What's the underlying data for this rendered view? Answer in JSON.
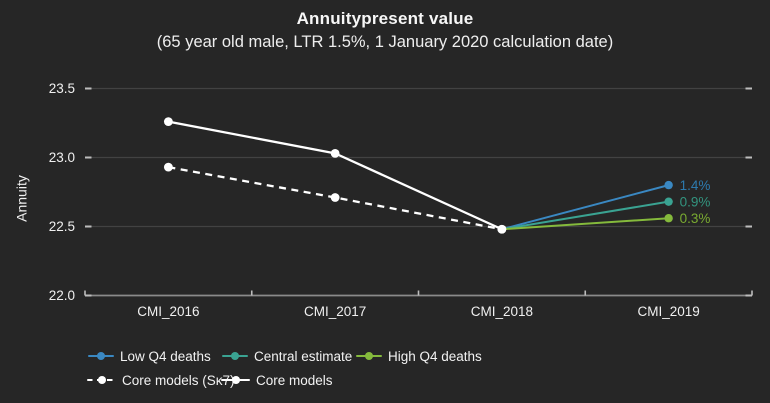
{
  "colors": {
    "background": "#262626",
    "text": "#f2f2f2",
    "gridline": "#424242",
    "axis_line": "#8a8a8a",
    "tick_mark": "#bdbdbd",
    "white_series": "#ffffff",
    "blue": "#3a88c2",
    "teal": "#3aa392",
    "green": "#85ba3c"
  },
  "chart_data": {
    "type": "line",
    "title": "Annuitypresent value",
    "subtitle": "(65 year old male, LTR 1.5%, 1 January 2020 calculation date)",
    "ylabel": "Annuity",
    "xlabel": "",
    "grid": true,
    "legend_position": "bottom",
    "categories": [
      "CMI_2016",
      "CMI_2017",
      "CMI_2018",
      "CMI_2019"
    ],
    "yticks": [
      23.5,
      23.0,
      22.5,
      22.0
    ],
    "ytick_labels": [
      "23.5",
      "23.0",
      "22.5",
      "22.0"
    ],
    "ylim": [
      22.0,
      23.5
    ],
    "series": [
      {
        "name": "Low Q4 deaths",
        "color": "#3a88c2",
        "label_color": "#2d7aae",
        "line_style": "solid",
        "marker": "end-dot",
        "values": [
          null,
          null,
          22.48,
          22.8
        ],
        "end_label": "1.4%"
      },
      {
        "name": "Central estimate",
        "color": "#3aa392",
        "label_color": "#33947f",
        "line_style": "solid",
        "marker": "end-dot",
        "values": [
          null,
          null,
          22.48,
          22.68
        ],
        "end_label": "0.9%"
      },
      {
        "name": "High Q4 deaths",
        "color": "#85ba3c",
        "label_color": "#7aab31",
        "line_style": "solid",
        "marker": "end-dot",
        "values": [
          null,
          null,
          22.48,
          22.56
        ],
        "end_label": "0.3%"
      },
      {
        "name": "Core models (Sᴋ7)",
        "color": "#ffffff",
        "label_color": "#ffffff",
        "line_style": "dashed",
        "marker": "all-dots",
        "values": [
          22.93,
          22.71,
          22.48,
          null
        ],
        "end_label": ""
      },
      {
        "name": "Core models",
        "color": "#ffffff",
        "label_color": "#ffffff",
        "line_style": "solid",
        "marker": "all-dots",
        "values": [
          23.26,
          23.03,
          22.48,
          null
        ],
        "end_label": ""
      }
    ]
  }
}
